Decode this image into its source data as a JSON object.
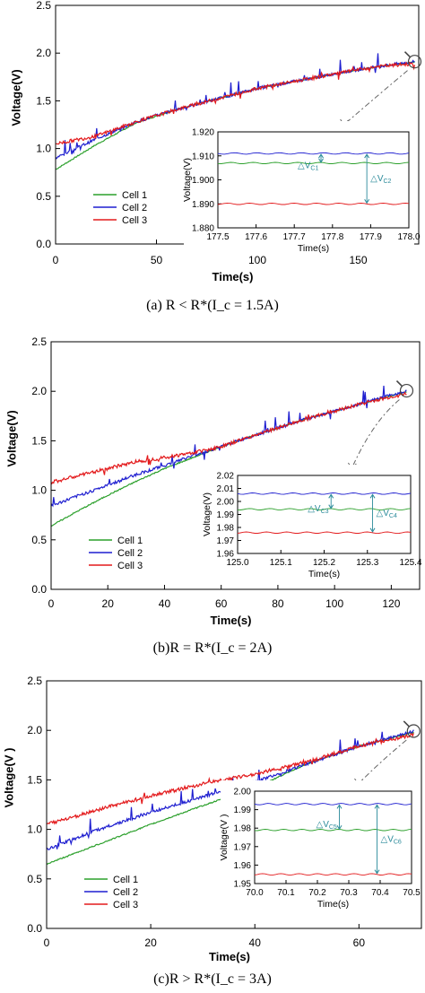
{
  "chart_data": [
    {
      "type": "line",
      "caption": "(a) R < R*(I_c = 1.5A)",
      "xlabel": "Time(s)",
      "ylabel": "Voltage(V)",
      "xlim": [
        0,
        180
      ],
      "ylim": [
        0.0,
        2.5
      ],
      "xticks": [
        0,
        50,
        100,
        150
      ],
      "yticks": [
        0.0,
        0.5,
        1.0,
        1.5,
        2.0,
        2.5
      ],
      "legend_position": "bottom-left",
      "series": [
        {
          "name": "Cell 1",
          "color": "#2ca02c",
          "x": [
            0,
            20,
            40,
            60,
            80,
            100,
            120,
            140,
            160,
            178
          ],
          "values": [
            0.78,
            1.04,
            1.27,
            1.41,
            1.52,
            1.63,
            1.71,
            1.79,
            1.86,
            1.907
          ]
        },
        {
          "name": "Cell 2",
          "color": "#1f1fd0",
          "x": [
            0,
            20,
            40,
            60,
            80,
            100,
            120,
            140,
            160,
            178
          ],
          "values": [
            0.9,
            1.1,
            1.28,
            1.41,
            1.52,
            1.63,
            1.71,
            1.79,
            1.86,
            1.911
          ]
        },
        {
          "name": "Cell 3",
          "color": "#e31a1c",
          "x": [
            0,
            20,
            40,
            60,
            80,
            100,
            120,
            140,
            160,
            178
          ],
          "values": [
            1.05,
            1.13,
            1.28,
            1.41,
            1.52,
            1.63,
            1.71,
            1.79,
            1.86,
            1.89
          ]
        }
      ],
      "inset": {
        "xlabel": "Time(s)",
        "ylabel": "Voltage(V)",
        "xlim": [
          177.5,
          178.0
        ],
        "ylim": [
          1.88,
          1.92
        ],
        "xticks": [
          "177.5",
          "177.6",
          "177.7",
          "177.8",
          "177.9",
          "178.0"
        ],
        "yticks": [
          "1.880",
          "1.890",
          "1.900",
          "1.910",
          "1.920"
        ],
        "levels": [
          1.911,
          1.907,
          1.89
        ],
        "annotations": [
          "△V",
          "C1",
          "△V",
          "C2"
        ]
      }
    },
    {
      "type": "line",
      "caption": "(b)R = R*(I_c = 2A)",
      "xlabel": "Time(s)",
      "ylabel": "Voltage(V)",
      "xlim": [
        0,
        130
      ],
      "ylim": [
        0.0,
        2.5
      ],
      "xticks": [
        0,
        20,
        40,
        60,
        80,
        100,
        120
      ],
      "yticks": [
        0.0,
        0.5,
        1.0,
        1.5,
        2.0,
        2.5
      ],
      "legend_position": "bottom-left",
      "series": [
        {
          "name": "Cell 1",
          "color": "#2ca02c",
          "x": [
            0,
            10,
            20,
            30,
            40,
            50,
            60,
            70,
            80,
            90,
            100,
            110,
            125.4
          ],
          "values": [
            0.64,
            0.8,
            0.95,
            1.09,
            1.22,
            1.33,
            1.44,
            1.54,
            1.63,
            1.72,
            1.8,
            1.88,
            1.994
          ]
        },
        {
          "name": "Cell 2",
          "color": "#1f1fd0",
          "x": [
            0,
            10,
            20,
            30,
            40,
            50,
            60,
            70,
            80,
            90,
            100,
            110,
            125.4
          ],
          "values": [
            0.84,
            0.95,
            1.05,
            1.16,
            1.25,
            1.35,
            1.44,
            1.54,
            1.63,
            1.72,
            1.8,
            1.88,
            2.006
          ]
        },
        {
          "name": "Cell 3",
          "color": "#e31a1c",
          "x": [
            0,
            10,
            20,
            30,
            40,
            50,
            60,
            70,
            80,
            90,
            100,
            110,
            125.4
          ],
          "values": [
            1.08,
            1.15,
            1.22,
            1.29,
            1.33,
            1.38,
            1.44,
            1.54,
            1.63,
            1.72,
            1.8,
            1.88,
            1.976
          ]
        }
      ],
      "inset": {
        "xlabel": "Time(s)",
        "ylabel": "Voltage(V)",
        "xlim": [
          125.0,
          125.4
        ],
        "ylim": [
          1.96,
          2.02
        ],
        "xticks": [
          "125.0",
          "125.1",
          "125.2",
          "125.3",
          "125.4"
        ],
        "yticks": [
          "1.96",
          "1.97",
          "1.98",
          "1.99",
          "2.00",
          "2.01",
          "2.02"
        ],
        "levels": [
          2.006,
          1.994,
          1.976
        ],
        "annotations": [
          "△V",
          "C3",
          "△V",
          "C4"
        ]
      }
    },
    {
      "type": "line",
      "caption": "(c)R > R*(I_c = 3A)",
      "xlabel": "Time(s)",
      "ylabel": "Voltage(V )",
      "xlim": [
        0,
        72
      ],
      "ylim": [
        0.0,
        2.5
      ],
      "xticks": [
        0,
        20,
        40,
        60
      ],
      "yticks": [
        0.0,
        0.5,
        1.0,
        1.5,
        2.0,
        2.5
      ],
      "legend_position": "bottom-left",
      "series": [
        {
          "name": "Cell 1",
          "color": "#2ca02c",
          "x": [
            0,
            10,
            20,
            30,
            40,
            50,
            60,
            70.5
          ],
          "values": [
            0.65,
            0.85,
            1.05,
            1.24,
            1.42,
            1.66,
            1.84,
            1.979
          ]
        },
        {
          "name": "Cell 2",
          "color": "#1f1fd0",
          "x": [
            0,
            10,
            20,
            30,
            40,
            50,
            60,
            70.5
          ],
          "values": [
            0.8,
            1.0,
            1.17,
            1.33,
            1.48,
            1.66,
            1.84,
            1.993
          ]
        },
        {
          "name": "Cell 3",
          "color": "#e31a1c",
          "x": [
            0,
            10,
            20,
            30,
            40,
            50,
            60,
            70.5
          ],
          "values": [
            1.05,
            1.2,
            1.34,
            1.46,
            1.56,
            1.68,
            1.84,
            1.955
          ]
        }
      ],
      "inset": {
        "xlabel": "Time(s)",
        "ylabel": "Voltage(V )",
        "xlim": [
          70.0,
          70.5
        ],
        "ylim": [
          1.95,
          2.0
        ],
        "xticks": [
          "70.0",
          "70.1",
          "70.2",
          "70.3",
          "70.4",
          "70.5"
        ],
        "yticks": [
          "1.95",
          "1.96",
          "1.97",
          "1.98",
          "1.99",
          "2.00"
        ],
        "levels": [
          1.993,
          1.979,
          1.955
        ],
        "annotations": [
          "△V",
          "C5",
          "△V",
          "C6"
        ]
      }
    }
  ]
}
